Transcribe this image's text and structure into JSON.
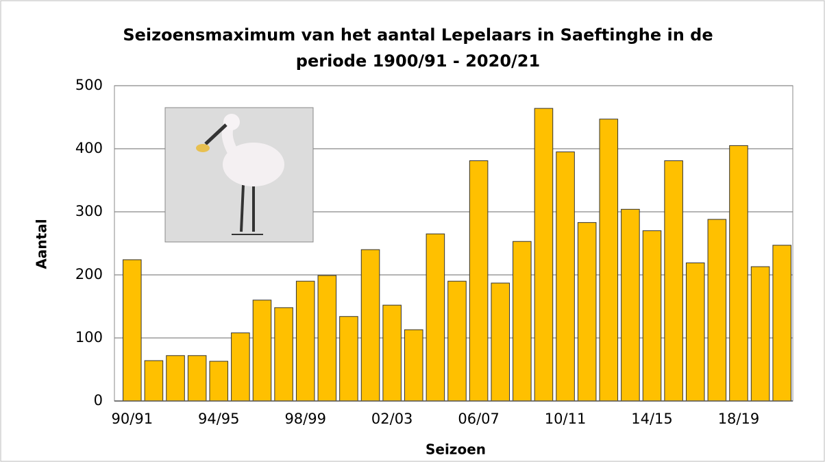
{
  "chart_data": {
    "type": "bar",
    "title": [
      "Seizoensmaximum van het aantal Lepelaars in Saeftinghe in de",
      "periode 1900/91 - 2020/21"
    ],
    "x_label": "Seizoen",
    "y_label": "Aantal",
    "categories": [
      "90/91",
      null,
      null,
      null,
      "94/95",
      null,
      null,
      null,
      "98/99",
      null,
      null,
      null,
      "02/03",
      null,
      null,
      null,
      "06/07",
      null,
      null,
      null,
      "10/11",
      null,
      null,
      null,
      "14/15",
      null,
      null,
      null,
      "18/19",
      null,
      null
    ],
    "values": [
      224,
      64,
      72,
      72,
      63,
      108,
      160,
      148,
      190,
      199,
      134,
      240,
      152,
      113,
      265,
      190,
      381,
      187,
      253,
      464,
      395,
      283,
      447,
      304,
      270,
      381,
      219,
      288,
      405,
      213,
      247
    ],
    "color": "#ffc000",
    "ylim": [
      0,
      500
    ],
    "yticks": [
      0,
      100,
      200,
      300,
      400,
      500
    ],
    "grid": true
  }
}
